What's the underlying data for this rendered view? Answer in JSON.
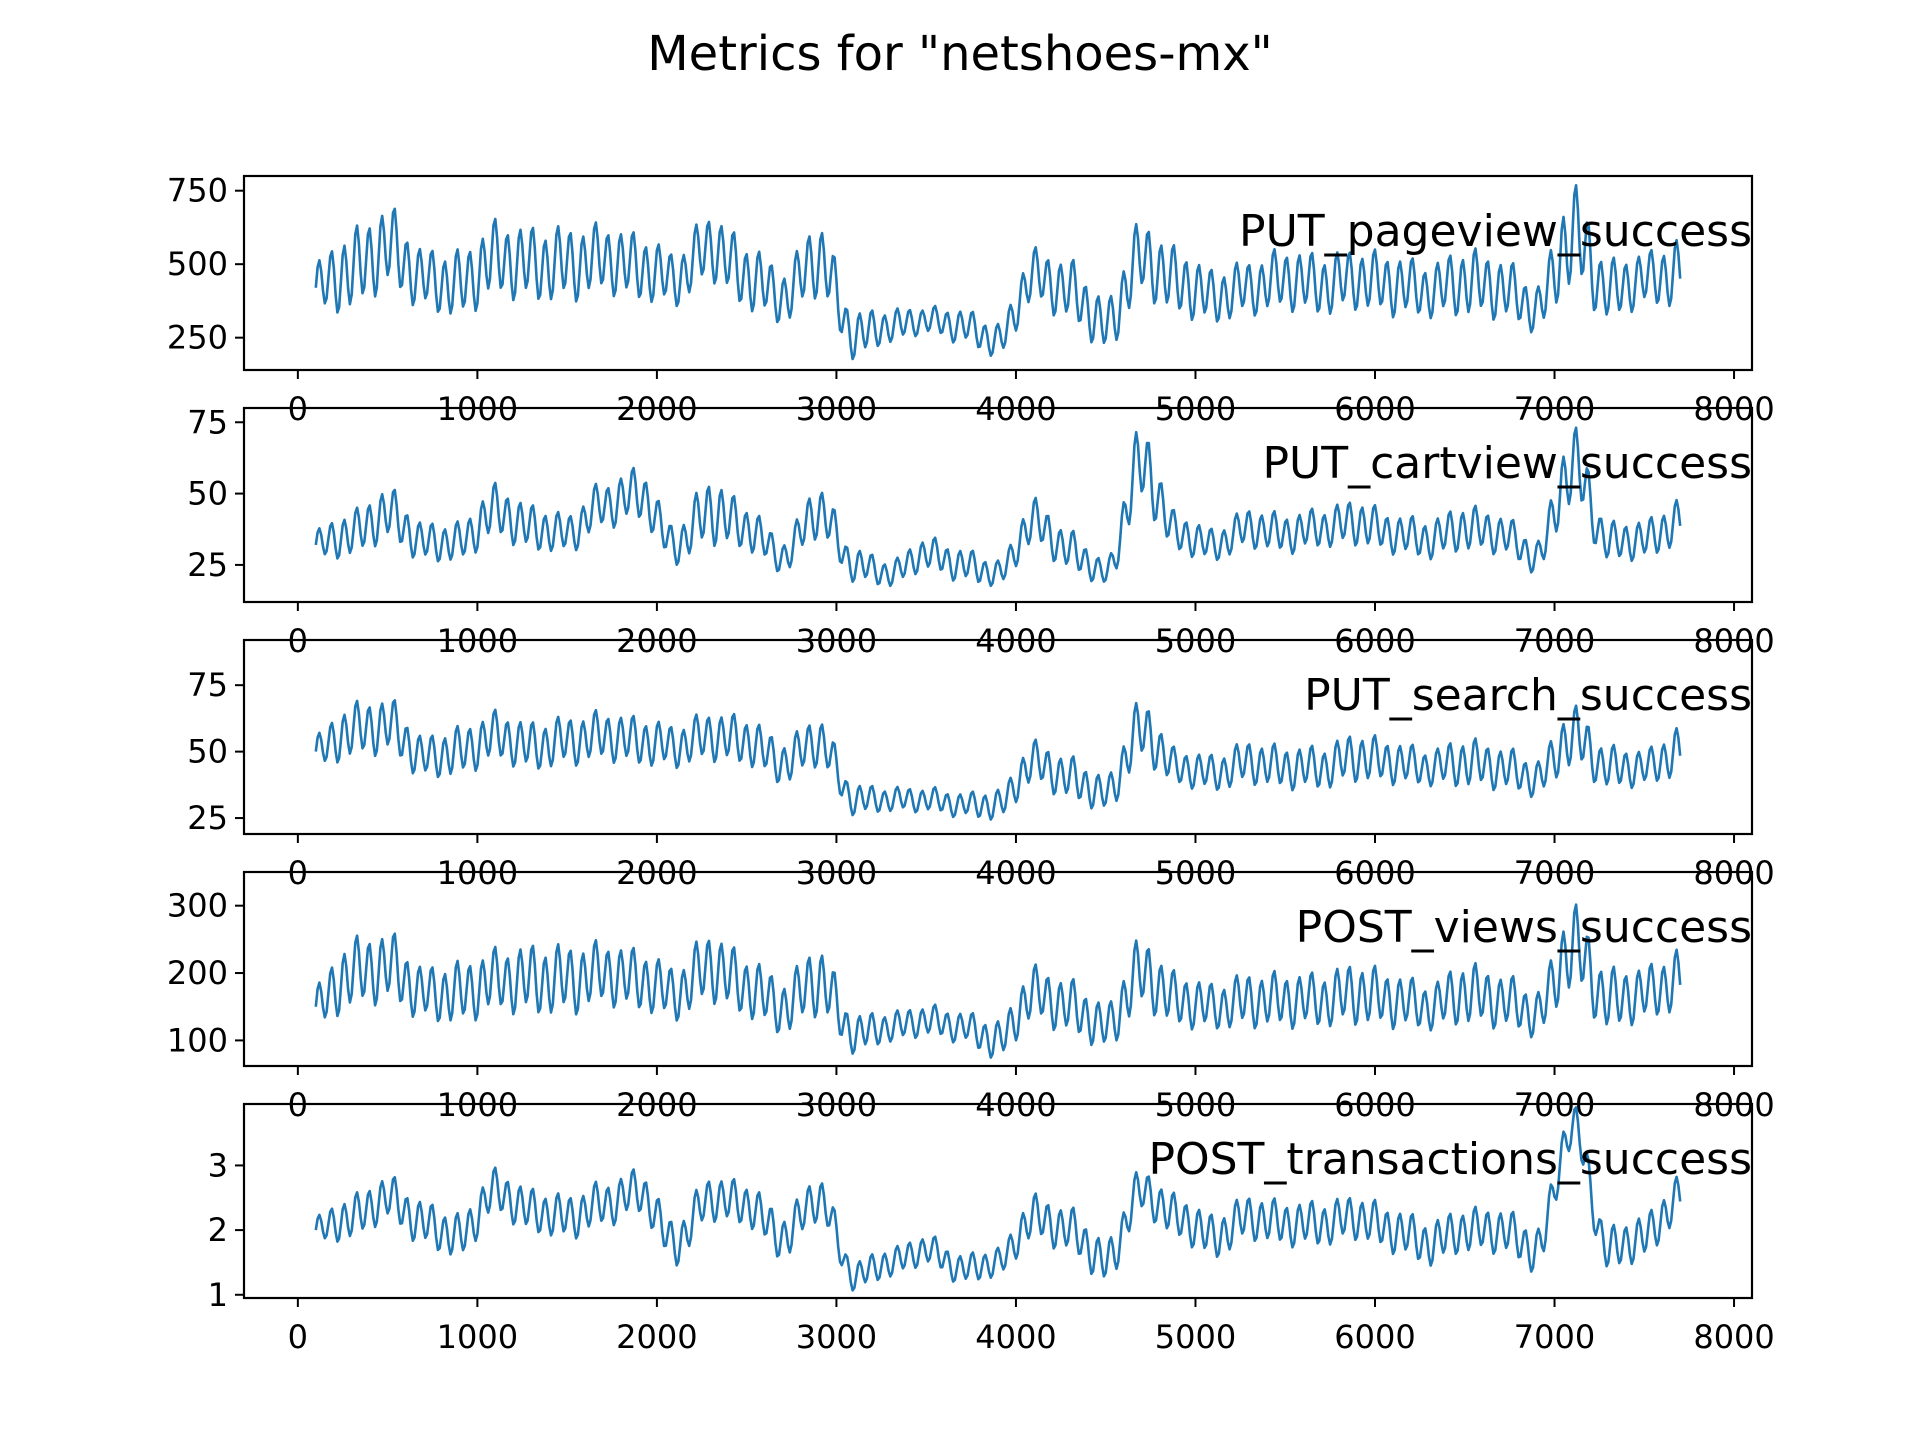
{
  "chart_data": {
    "type": "line",
    "title": "Metrics for \"netshoes-mx\"",
    "line_color": "#1f77b4",
    "x_range": [
      100,
      7700
    ],
    "xlim": [
      -300,
      8100
    ],
    "xticks": [
      0,
      1000,
      2000,
      3000,
      4000,
      5000,
      6000,
      7000,
      8000
    ],
    "x_tick_labels": [
      "0",
      "1000",
      "2000",
      "3000",
      "4000",
      "5000",
      "6000",
      "7000",
      "8000"
    ],
    "legend_placement": "top-right",
    "grid": false,
    "panels": [
      {
        "label": "PUT_pageview_success",
        "ylim": [
          140,
          800
        ],
        "yticks": [
          250,
          500,
          750
        ],
        "y_tick_labels": [
          "250",
          "500",
          "750"
        ],
        "x": [
          100,
          300,
          500,
          700,
          900,
          1100,
          1300,
          1500,
          1700,
          1900,
          2100,
          2300,
          2500,
          2700,
          2900,
          3100,
          3300,
          3500,
          3700,
          3900,
          4100,
          4300,
          4500,
          4700,
          4900,
          5100,
          5300,
          5500,
          5700,
          5900,
          6100,
          6300,
          6500,
          6700,
          6900,
          7100,
          7300,
          7500,
          7700
        ],
        "values": [
          420,
          480,
          560,
          450,
          430,
          520,
          500,
          500,
          520,
          490,
          450,
          560,
          460,
          390,
          520,
          260,
          290,
          310,
          290,
          240,
          460,
          410,
          290,
          520,
          440,
          390,
          420,
          450,
          430,
          450,
          430,
          410,
          440,
          420,
          350,
          600,
          410,
          450,
          470
        ],
        "amplitude": [
          80,
          120,
          120,
          90,
          100,
          110,
          110,
          110,
          100,
          100,
          80,
          100,
          100,
          80,
          110,
          70,
          50,
          40,
          50,
          50,
          80,
          90,
          80,
          110,
          100,
          80,
          80,
          90,
          90,
          90,
          90,
          80,
          100,
          90,
          70,
          150,
          90,
          80,
          100
        ]
      },
      {
        "label": "PUT_cartview_success",
        "ylim": [
          12,
          80
        ],
        "yticks": [
          25,
          50,
          75
        ],
        "y_tick_labels": [
          "25",
          "50",
          "75"
        ],
        "x": [
          100,
          300,
          500,
          700,
          900,
          1100,
          1300,
          1500,
          1700,
          1900,
          2100,
          2300,
          2500,
          2700,
          2900,
          3100,
          3300,
          3500,
          3700,
          3900,
          4100,
          4300,
          4500,
          4700,
          4900,
          5100,
          5300,
          5500,
          5700,
          5900,
          6100,
          6300,
          6500,
          6700,
          6900,
          7100,
          7300,
          7500,
          7700
        ],
        "values": [
          32,
          36,
          43,
          33,
          33,
          44,
          38,
          36,
          46,
          50,
          32,
          44,
          38,
          28,
          44,
          25,
          22,
          29,
          25,
          22,
          40,
          30,
          22,
          60,
          36,
          32,
          38,
          36,
          38,
          40,
          36,
          34,
          38,
          36,
          28,
          60,
          33,
          34,
          40
        ],
        "amplitude": [
          5,
          7,
          8,
          6,
          6,
          8,
          7,
          6,
          7,
          8,
          6,
          10,
          7,
          5,
          8,
          5,
          4,
          5,
          5,
          4,
          7,
          6,
          4,
          12,
          6,
          5,
          6,
          6,
          6,
          7,
          6,
          6,
          7,
          6,
          5,
          12,
          6,
          6,
          7
        ]
      },
      {
        "label": "PUT_search_success",
        "ylim": [
          19,
          92
        ],
        "yticks": [
          25,
          50,
          75
        ],
        "y_tick_labels": [
          "25",
          "50",
          "75"
        ],
        "x": [
          100,
          300,
          500,
          700,
          900,
          1100,
          1300,
          1500,
          1700,
          1900,
          2100,
          2300,
          2500,
          2700,
          2900,
          3100,
          3300,
          3500,
          3700,
          3900,
          4100,
          4300,
          4500,
          4700,
          4900,
          5100,
          5300,
          5500,
          5700,
          5900,
          6100,
          6300,
          6500,
          6700,
          6900,
          7100,
          7300,
          7500,
          7700
        ],
        "values": [
          50,
          58,
          60,
          48,
          50,
          56,
          52,
          54,
          56,
          54,
          52,
          56,
          54,
          46,
          54,
          32,
          32,
          32,
          30,
          30,
          46,
          40,
          34,
          58,
          44,
          42,
          46,
          44,
          44,
          48,
          46,
          44,
          46,
          44,
          40,
          56,
          44,
          44,
          50
        ],
        "amplitude": [
          6,
          9,
          9,
          7,
          8,
          8,
          8,
          8,
          8,
          8,
          7,
          8,
          8,
          7,
          8,
          5,
          4,
          4,
          4,
          5,
          7,
          7,
          6,
          10,
          6,
          6,
          7,
          7,
          7,
          8,
          7,
          6,
          8,
          7,
          6,
          10,
          7,
          6,
          8
        ]
      },
      {
        "label": "POST_views_success",
        "ylim": [
          62,
          350
        ],
        "yticks": [
          100,
          200,
          300
        ],
        "y_tick_labels": [
          "100",
          "200",
          "300"
        ],
        "x": [
          100,
          300,
          500,
          700,
          900,
          1100,
          1300,
          1500,
          1700,
          1900,
          2100,
          2300,
          2500,
          2700,
          2900,
          3100,
          3300,
          3500,
          3700,
          3900,
          4100,
          4300,
          4500,
          4700,
          4900,
          5100,
          5300,
          5500,
          5700,
          5900,
          6100,
          6300,
          6500,
          6700,
          6900,
          7100,
          7300,
          7500,
          7700
        ],
        "values": [
          150,
          200,
          210,
          170,
          170,
          190,
          190,
          190,
          200,
          190,
          170,
          210,
          180,
          150,
          190,
          110,
          120,
          130,
          120,
          100,
          170,
          150,
          120,
          200,
          160,
          150,
          160,
          160,
          160,
          170,
          160,
          150,
          170,
          160,
          140,
          240,
          160,
          170,
          190
        ],
        "amplitude": [
          30,
          45,
          45,
          35,
          40,
          40,
          45,
          45,
          40,
          40,
          35,
          45,
          40,
          35,
          45,
          25,
          20,
          20,
          20,
          25,
          35,
          35,
          30,
          45,
          35,
          30,
          35,
          35,
          35,
          40,
          35,
          30,
          40,
          35,
          30,
          55,
          40,
          35,
          40
        ]
      },
      {
        "label": "POST_transactions_success",
        "ylim": [
          0.95,
          3.95
        ],
        "yticks": [
          1,
          2,
          3
        ],
        "y_tick_labels": [
          "1",
          "2",
          "3"
        ],
        "x": [
          100,
          300,
          500,
          700,
          900,
          1100,
          1300,
          1500,
          1700,
          1900,
          2100,
          2300,
          2500,
          2700,
          2900,
          3100,
          3300,
          3500,
          3700,
          3900,
          4100,
          4300,
          4500,
          4700,
          4900,
          5100,
          5300,
          5500,
          5700,
          5900,
          6100,
          6300,
          6500,
          6700,
          6900,
          7100,
          7300,
          7500,
          7700
        ],
        "values": [
          2.0,
          2.2,
          2.5,
          2.1,
          1.9,
          2.6,
          2.3,
          2.2,
          2.4,
          2.6,
          1.8,
          2.5,
          2.4,
          1.9,
          2.5,
          1.3,
          1.5,
          1.7,
          1.4,
          1.5,
          2.2,
          2.0,
          1.5,
          2.6,
          2.2,
          1.9,
          2.2,
          2.1,
          2.1,
          2.2,
          2.0,
          1.8,
          2.0,
          2.0,
          1.7,
          3.6,
          1.7,
          1.9,
          2.5
        ],
        "amplitude": [
          0.2,
          0.3,
          0.3,
          0.3,
          0.3,
          0.3,
          0.3,
          0.3,
          0.3,
          0.3,
          0.3,
          0.3,
          0.3,
          0.3,
          0.3,
          0.2,
          0.2,
          0.2,
          0.2,
          0.2,
          0.3,
          0.3,
          0.3,
          0.3,
          0.3,
          0.3,
          0.3,
          0.3,
          0.3,
          0.3,
          0.3,
          0.3,
          0.3,
          0.3,
          0.3,
          0.3,
          0.3,
          0.3,
          0.3
        ]
      }
    ]
  }
}
